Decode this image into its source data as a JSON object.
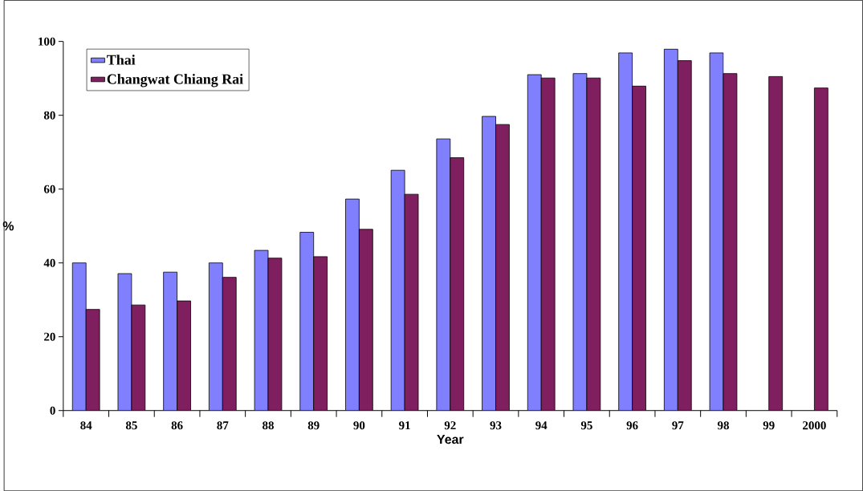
{
  "chart_data": {
    "type": "bar",
    "xlabel": "Year",
    "ylabel": "%",
    "categories": [
      "84",
      "85",
      "86",
      "87",
      "88",
      "89",
      "90",
      "91",
      "92",
      "93",
      "94",
      "95",
      "96",
      "97",
      "98",
      "99",
      "2000"
    ],
    "series": [
      {
        "name": "Thai",
        "color": "#8080ff",
        "values": [
          40.0,
          37.1,
          37.5,
          40.0,
          43.4,
          48.3,
          57.3,
          65.1,
          73.6,
          79.7,
          91.0,
          91.3,
          96.9,
          97.9,
          96.9,
          null,
          null
        ]
      },
      {
        "name": "Changwat Chiang Rai",
        "color": "#7f1f5f",
        "values": [
          27.4,
          28.6,
          29.7,
          36.1,
          41.3,
          41.7,
          49.1,
          58.6,
          68.5,
          77.5,
          90.1,
          90.1,
          87.9,
          94.8,
          91.3,
          90.5,
          87.4
        ]
      }
    ],
    "ylim": [
      0,
      100
    ],
    "yticks": [
      0,
      20,
      40,
      60,
      80,
      100
    ],
    "grid": false,
    "legend": "top left"
  }
}
